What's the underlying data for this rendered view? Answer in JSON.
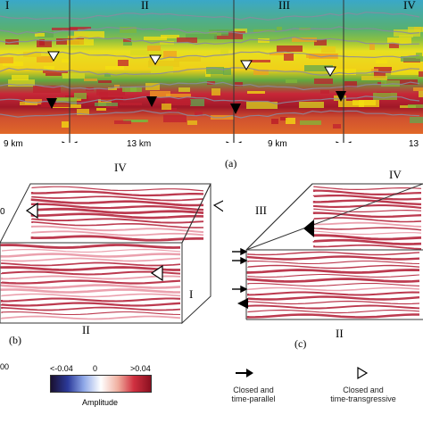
{
  "panel_a": {
    "section_labels": [
      "I",
      "II",
      "III",
      "IV"
    ],
    "distances": [
      "9 km",
      "13 km",
      "9 km",
      "13"
    ],
    "label": "(a)"
  },
  "panel_b": {
    "top_label": "IV",
    "right_label": "I",
    "bottom_label": "II",
    "left_value": "0",
    "label": "(b)"
  },
  "panel_c": {
    "top_label": "IV",
    "left_label": "III",
    "bottom_label": "II",
    "label": "(c)"
  },
  "colorbar": {
    "left_edge_text": "00",
    "min_label": "<-0.04",
    "mid_label": "0",
    "max_label": ">0.04",
    "title": "Amplitude",
    "colors": [
      "#1a1030",
      "#2b3a9a",
      "#8fa8e8",
      "#ffffff",
      "#f0b0a0",
      "#d03040",
      "#8a1020"
    ]
  },
  "legend": {
    "filled_label": "Closed and\ntime-parallel",
    "open_label": "Closed and\ntime-transgressive"
  }
}
